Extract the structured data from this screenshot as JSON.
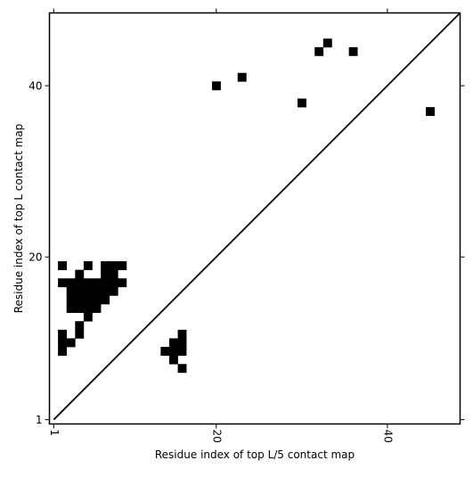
{
  "chart_data": {
    "type": "heatmap",
    "xlabel": "Residue index of top L/5 contact map",
    "ylabel": "Residue index of top L contact map",
    "xlim": [
      0.5,
      48.5
    ],
    "ylim": [
      0.5,
      48.5
    ],
    "xticks": [
      1,
      20,
      40
    ],
    "yticks": [
      1,
      20,
      40
    ],
    "xtick_labels": [
      "1",
      "20",
      "40"
    ],
    "ytick_labels": [
      "1",
      "20",
      "40"
    ],
    "diagonal": true,
    "grid": false,
    "cell_color": "#000000",
    "lower_triangle_cells": [
      [
        2,
        19
      ],
      [
        5,
        19
      ],
      [
        7,
        19
      ],
      [
        8,
        19
      ],
      [
        9,
        19
      ],
      [
        4,
        18
      ],
      [
        7,
        18
      ],
      [
        8,
        18
      ],
      [
        2,
        17
      ],
      [
        3,
        17
      ],
      [
        4,
        17
      ],
      [
        5,
        17
      ],
      [
        6,
        17
      ],
      [
        7,
        17
      ],
      [
        8,
        17
      ],
      [
        9,
        17
      ],
      [
        3,
        16
      ],
      [
        4,
        16
      ],
      [
        5,
        16
      ],
      [
        6,
        16
      ],
      [
        7,
        16
      ],
      [
        8,
        16
      ],
      [
        3,
        15
      ],
      [
        4,
        15
      ],
      [
        5,
        15
      ],
      [
        6,
        15
      ],
      [
        7,
        15
      ],
      [
        3,
        14
      ],
      [
        4,
        14
      ],
      [
        5,
        14
      ],
      [
        6,
        14
      ],
      [
        5,
        13
      ],
      [
        4,
        12
      ],
      [
        2,
        11
      ],
      [
        4,
        11
      ],
      [
        16,
        11
      ],
      [
        2,
        10
      ],
      [
        3,
        10
      ],
      [
        15,
        10
      ],
      [
        16,
        10
      ],
      [
        2,
        9
      ],
      [
        14,
        9
      ],
      [
        15,
        9
      ],
      [
        16,
        9
      ],
      [
        15,
        8
      ],
      [
        16,
        7
      ]
    ],
    "upper_triangle_cells": [
      [
        33,
        45
      ],
      [
        32,
        44
      ],
      [
        36,
        44
      ],
      [
        23,
        41
      ],
      [
        20,
        40
      ],
      [
        30,
        38
      ],
      [
        45,
        37
      ]
    ]
  }
}
